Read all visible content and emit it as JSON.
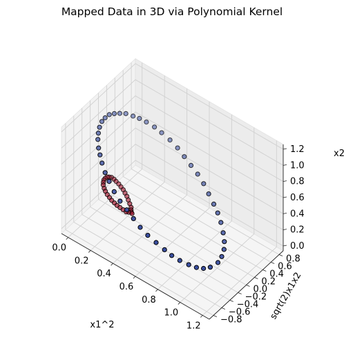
{
  "chart_data": {
    "type": "scatter",
    "projection": "3d",
    "title": "Mapped Data in 3D via Polynomial Kernel",
    "xlabel": "x1^2",
    "ylabel": "sqrt(2)x1x2",
    "zlabel": "x2",
    "xlim": [
      -0.06,
      1.26
    ],
    "ylim": [
      -0.9,
      0.9
    ],
    "zlim": [
      -0.06,
      1.26
    ],
    "x_ticks": [
      "0.0",
      "0.2",
      "0.4",
      "0.6",
      "0.8",
      "1.0",
      "1.2"
    ],
    "y_ticks": [
      "−0.8",
      "−0.6",
      "−0.4",
      "−0.2",
      "0.0",
      "0.2",
      "0.4",
      "0.6",
      "0.8"
    ],
    "z_ticks": [
      "0.0",
      "0.2",
      "0.4",
      "0.6",
      "0.8",
      "1.0",
      "1.2"
    ],
    "grid": true,
    "series": [
      {
        "color": "#3a4fa0",
        "points": [
          [
            0.0,
            0.0,
            1.0
          ],
          [
            0.004,
            0.09,
            1.0
          ],
          [
            0.016,
            0.18,
            0.98
          ],
          [
            0.035,
            0.26,
            0.96
          ],
          [
            0.06,
            0.34,
            0.94
          ],
          [
            0.095,
            0.42,
            0.9
          ],
          [
            0.13,
            0.48,
            0.87
          ],
          [
            0.17,
            0.54,
            0.83
          ],
          [
            0.22,
            0.6,
            0.78
          ],
          [
            0.27,
            0.64,
            0.73
          ],
          [
            0.33,
            0.68,
            0.67
          ],
          [
            0.39,
            0.7,
            0.61
          ],
          [
            0.45,
            0.7,
            0.55
          ],
          [
            0.51,
            0.7,
            0.49
          ],
          [
            0.57,
            0.7,
            0.43
          ],
          [
            0.63,
            0.68,
            0.37
          ],
          [
            0.69,
            0.64,
            0.31
          ],
          [
            0.75,
            0.6,
            0.25
          ],
          [
            0.8,
            0.56,
            0.2
          ],
          [
            0.85,
            0.5,
            0.15
          ],
          [
            0.9,
            0.42,
            0.1
          ],
          [
            0.94,
            0.34,
            0.06
          ],
          [
            0.97,
            0.25,
            0.03
          ],
          [
            0.99,
            0.14,
            0.01
          ],
          [
            1.0,
            0.02,
            0.0
          ],
          [
            0.004,
            -0.09,
            1.0
          ],
          [
            0.016,
            -0.18,
            0.98
          ],
          [
            0.035,
            -0.26,
            0.96
          ],
          [
            0.06,
            -0.34,
            0.94
          ],
          [
            0.095,
            -0.42,
            0.9
          ],
          [
            0.13,
            -0.48,
            0.87
          ],
          [
            0.17,
            -0.54,
            0.83
          ],
          [
            0.22,
            -0.6,
            0.78
          ],
          [
            0.27,
            -0.64,
            0.73
          ],
          [
            0.33,
            -0.68,
            0.67
          ],
          [
            0.39,
            -0.7,
            0.61
          ],
          [
            0.45,
            -0.7,
            0.55
          ],
          [
            0.51,
            -0.7,
            0.49
          ],
          [
            0.57,
            -0.7,
            0.43
          ],
          [
            0.63,
            -0.68,
            0.37
          ],
          [
            0.69,
            -0.64,
            0.31
          ],
          [
            0.75,
            -0.6,
            0.25
          ],
          [
            0.8,
            -0.56,
            0.2
          ],
          [
            0.85,
            -0.5,
            0.15
          ],
          [
            0.9,
            -0.42,
            0.1
          ],
          [
            0.94,
            -0.34,
            0.06
          ],
          [
            0.97,
            -0.25,
            0.03
          ],
          [
            0.99,
            -0.14,
            0.01
          ]
        ]
      },
      {
        "color": "#a0162e",
        "points": [
          [
            0.0,
            0.0,
            0.25
          ],
          [
            0.003,
            0.04,
            0.25
          ],
          [
            0.01,
            0.07,
            0.24
          ],
          [
            0.02,
            0.1,
            0.23
          ],
          [
            0.035,
            0.12,
            0.21
          ],
          [
            0.05,
            0.13,
            0.19
          ],
          [
            0.07,
            0.14,
            0.17
          ],
          [
            0.09,
            0.14,
            0.15
          ],
          [
            0.11,
            0.14,
            0.13
          ],
          [
            0.13,
            0.13,
            0.11
          ],
          [
            0.15,
            0.12,
            0.09
          ],
          [
            0.17,
            0.1,
            0.07
          ],
          [
            0.19,
            0.08,
            0.05
          ],
          [
            0.21,
            0.06,
            0.03
          ],
          [
            0.22,
            0.03,
            0.02
          ],
          [
            0.23,
            0.01,
            0.01
          ],
          [
            0.003,
            -0.04,
            0.25
          ],
          [
            0.01,
            -0.07,
            0.24
          ],
          [
            0.02,
            -0.1,
            0.23
          ],
          [
            0.035,
            -0.12,
            0.21
          ],
          [
            0.05,
            -0.13,
            0.19
          ],
          [
            0.07,
            -0.14,
            0.17
          ],
          [
            0.09,
            -0.14,
            0.15
          ],
          [
            0.11,
            -0.14,
            0.13
          ],
          [
            0.13,
            -0.13,
            0.11
          ],
          [
            0.15,
            -0.12,
            0.09
          ],
          [
            0.17,
            -0.1,
            0.07
          ],
          [
            0.19,
            -0.08,
            0.05
          ],
          [
            0.21,
            -0.06,
            0.03
          ],
          [
            0.22,
            -0.03,
            0.02
          ],
          [
            0.24,
            0.0,
            0.005
          ]
        ]
      }
    ]
  }
}
